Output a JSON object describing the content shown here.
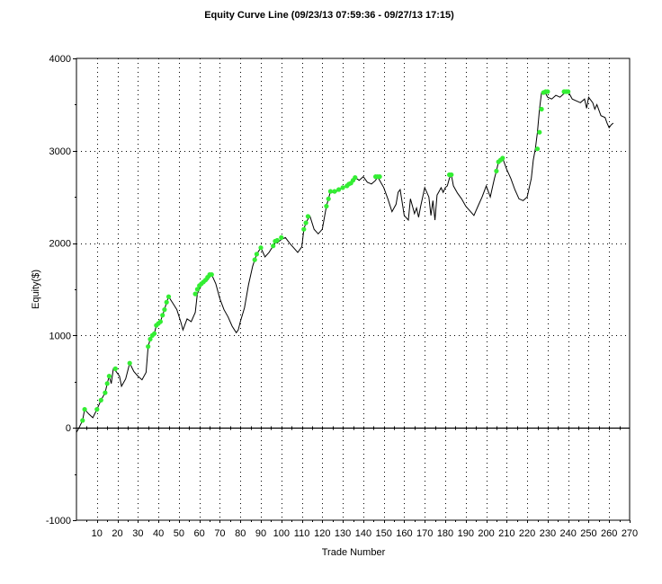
{
  "chart_data": {
    "type": "line",
    "title": "Equity Curve Line (09/23/13 07:59:36 - 09/27/13 17:15)",
    "xlabel": "Trade Number",
    "ylabel": "Equity($)",
    "xlim": [
      0,
      270
    ],
    "ylim": [
      -1000,
      4000
    ],
    "xticks": [
      10,
      20,
      30,
      40,
      50,
      60,
      70,
      80,
      90,
      100,
      110,
      120,
      130,
      140,
      150,
      160,
      170,
      180,
      190,
      200,
      210,
      220,
      230,
      240,
      250,
      260,
      270
    ],
    "xtick_labels": [
      "10",
      "20",
      "30",
      "40",
      "50",
      "60",
      "70",
      "80",
      "90",
      "100",
      "110",
      "120",
      "130",
      "140",
      "150",
      "160",
      "170",
      "180",
      "190",
      "200",
      "210",
      "220",
      "230",
      "240",
      "250",
      "260",
      "270"
    ],
    "yticks": [
      -1000,
      0,
      1000,
      2000,
      3000,
      4000
    ],
    "ytick_labels": [
      "-1000",
      "0",
      "1000",
      "2000",
      "3000",
      "4000"
    ],
    "grid": true,
    "colors": {
      "line": "#000000",
      "new_high_marker": "#33ee33",
      "grid": "#000000",
      "background": "#ffffff"
    },
    "series": [
      {
        "x": [
          0,
          1,
          3,
          4,
          6,
          8,
          10,
          12,
          14,
          15,
          16,
          17,
          18,
          19,
          21,
          22,
          24,
          26,
          28,
          30,
          32,
          34,
          35,
          36,
          37,
          38,
          39,
          40,
          41,
          42,
          43,
          44,
          45,
          47,
          49,
          51,
          52,
          54,
          56,
          58,
          59,
          60,
          61,
          62,
          63,
          64,
          65,
          66,
          68,
          70,
          72,
          74,
          76,
          78,
          79,
          80,
          82,
          84,
          86,
          87,
          88,
          90,
          92,
          94,
          96,
          97,
          98,
          100,
          102,
          104,
          106,
          108,
          110,
          111,
          112,
          113,
          114,
          116,
          118,
          120,
          122,
          123,
          124,
          126,
          128,
          130,
          132,
          133,
          134,
          135,
          136,
          138,
          140,
          142,
          144,
          146,
          147,
          148,
          150,
          152,
          154,
          156,
          157,
          158,
          160,
          162,
          163,
          164,
          165,
          166,
          167,
          168,
          170,
          172,
          173,
          174,
          175,
          176,
          177,
          178,
          179,
          180,
          181,
          182,
          183,
          184,
          186,
          188,
          190,
          192,
          194,
          196,
          198,
          200,
          202,
          203,
          204,
          205,
          206,
          207,
          208,
          210,
          212,
          214,
          216,
          218,
          220,
          222,
          223,
          224,
          225,
          226,
          227,
          228,
          229,
          230,
          232,
          234,
          236,
          238,
          240,
          242,
          244,
          246,
          248,
          249,
          250,
          252,
          253,
          254,
          256,
          258,
          259,
          260,
          261,
          262
        ],
        "y": [
          -50,
          -10,
          80,
          200,
          150,
          110,
          200,
          300,
          380,
          480,
          560,
          480,
          640,
          620,
          560,
          450,
          530,
          700,
          610,
          560,
          520,
          600,
          880,
          960,
          1000,
          1020,
          1110,
          1130,
          1150,
          1220,
          1280,
          1360,
          1420,
          1350,
          1280,
          1140,
          1060,
          1180,
          1150,
          1250,
          1450,
          1500,
          1540,
          1560,
          1580,
          1600,
          1630,
          1660,
          1560,
          1400,
          1280,
          1200,
          1100,
          1030,
          1060,
          1150,
          1300,
          1550,
          1750,
          1820,
          1880,
          1950,
          1850,
          1900,
          1970,
          2020,
          2000,
          2040,
          2060,
          2000,
          1950,
          1900,
          1960,
          2150,
          2220,
          2260,
          2290,
          2150,
          2100,
          2150,
          2400,
          2480,
          2560,
          2540,
          2580,
          2600,
          2620,
          2620,
          2650,
          2680,
          2710,
          2680,
          2720,
          2660,
          2640,
          2680,
          2720,
          2680,
          2600,
          2480,
          2340,
          2420,
          2550,
          2580,
          2300,
          2250,
          2480,
          2400,
          2320,
          2380,
          2280,
          2400,
          2600,
          2500,
          2300,
          2460,
          2250,
          2520,
          2560,
          2600,
          2550,
          2600,
          2620,
          2700,
          2740,
          2620,
          2540,
          2480,
          2400,
          2350,
          2300,
          2400,
          2500,
          2620,
          2500,
          2600,
          2700,
          2780,
          2880,
          2900,
          2920,
          2800,
          2700,
          2580,
          2480,
          2460,
          2500,
          2700,
          2900,
          3020,
          3200,
          3450,
          3630,
          3640,
          3620,
          3580,
          3560,
          3600,
          3580,
          3620,
          3640,
          3560,
          3540,
          3520,
          3560,
          3460,
          3580,
          3520,
          3450,
          3500,
          3380,
          3360,
          3300,
          3250,
          3280,
          3300
        ]
      }
    ],
    "new_high_markers": {
      "x": [
        3,
        4,
        10,
        12,
        14,
        15,
        16,
        19,
        26,
        35,
        36,
        37,
        38,
        39,
        40,
        41,
        42,
        43,
        44,
        45,
        58,
        59,
        60,
        61,
        62,
        63,
        64,
        65,
        66,
        87,
        88,
        90,
        96,
        97,
        98,
        100,
        111,
        112,
        113,
        122,
        123,
        124,
        126,
        128,
        130,
        132,
        133,
        134,
        135,
        136,
        146,
        147,
        148,
        182,
        183,
        205,
        206,
        207,
        208,
        225,
        226,
        227,
        228,
        229,
        230,
        238,
        239,
        240
      ],
      "y": [
        80,
        200,
        200,
        300,
        380,
        480,
        560,
        640,
        700,
        880,
        960,
        1000,
        1020,
        1110,
        1130,
        1150,
        1220,
        1280,
        1360,
        1420,
        1450,
        1500,
        1540,
        1560,
        1580,
        1600,
        1630,
        1660,
        1660,
        1820,
        1880,
        1950,
        1970,
        2020,
        2030,
        2060,
        2150,
        2220,
        2290,
        2400,
        2480,
        2560,
        2560,
        2580,
        2600,
        2620,
        2640,
        2650,
        2680,
        2710,
        2720,
        2720,
        2720,
        2740,
        2740,
        2780,
        2880,
        2900,
        2920,
        3020,
        3200,
        3450,
        3630,
        3640,
        3640,
        3640,
        3640,
        3640
      ]
    }
  }
}
